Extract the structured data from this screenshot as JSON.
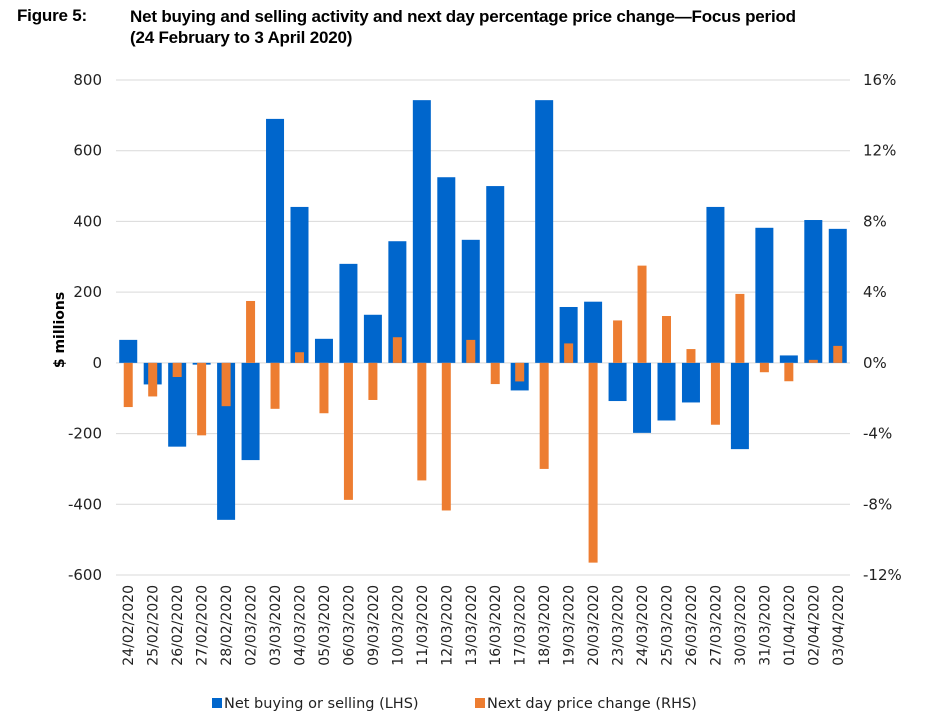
{
  "figure": {
    "label": "Figure 5:",
    "title_line1": "Net buying and selling activity and next day percentage price change—Focus period",
    "title_line2": "(24 February to 3 April 2020)"
  },
  "chart_data": {
    "type": "bar",
    "title": "Net buying and selling activity and next day percentage price change—Focus period (24 February to 3 April 2020)",
    "xlabel": "",
    "ylabel": "$ millions",
    "y2label": "",
    "ylim": [
      -600,
      800
    ],
    "y2lim": [
      -12,
      16
    ],
    "yticks": [
      800,
      600,
      400,
      200,
      0,
      -200,
      -400,
      -600
    ],
    "ytick_labels": [
      "800",
      "600",
      "400",
      "200",
      "0",
      "-200",
      "-400",
      "-600"
    ],
    "y2ticks": [
      16,
      12,
      8,
      4,
      0,
      -4,
      -8,
      -12
    ],
    "y2tick_labels": [
      "16%",
      "12%",
      "8%",
      "4%",
      "0%",
      "-4%",
      "-8%",
      "-12%"
    ],
    "grid": true,
    "legend_position": "bottom",
    "colors": {
      "net": "#0066cc",
      "price": "#ed7d31",
      "grid": "#d9d9d9"
    },
    "categories": [
      "24/02/2020",
      "25/02/2020",
      "26/02/2020",
      "27/02/2020",
      "28/02/2020",
      "02/03/2020",
      "03/03/2020",
      "04/03/2020",
      "05/03/2020",
      "06/03/2020",
      "09/03/2020",
      "10/03/2020",
      "11/03/2020",
      "12/03/2020",
      "13/03/2020",
      "16/03/2020",
      "17/03/2020",
      "18/03/2020",
      "19/03/2020",
      "20/03/2020",
      "23/03/2020",
      "24/03/2020",
      "25/03/2020",
      "26/03/2020",
      "27/03/2020",
      "30/03/2020",
      "31/03/2020",
      "01/04/2020",
      "02/04/2020",
      "03/04/2020"
    ],
    "series": [
      {
        "name": "Net buying or selling (LHS)",
        "axis": "left",
        "unit": "$ millions",
        "values": [
          65,
          -61,
          -237,
          -5,
          -444,
          -275,
          690,
          441,
          68,
          280,
          136,
          344,
          743,
          525,
          348,
          500,
          -78,
          743,
          158,
          173,
          -108,
          -198,
          -163,
          -112,
          441,
          -244,
          382,
          21,
          404,
          379
        ]
      },
      {
        "name": "Next day price change (RHS)",
        "axis": "right",
        "unit": "%",
        "values": [
          -2.5,
          -1.9,
          -0.8,
          -4.1,
          -2.45,
          3.5,
          -2.6,
          0.6,
          -2.85,
          -7.75,
          -2.1,
          1.45,
          -6.65,
          -8.35,
          1.3,
          -1.2,
          -1.05,
          -6.0,
          1.1,
          -11.3,
          2.4,
          5.5,
          2.65,
          0.78,
          -3.5,
          3.9,
          -0.53,
          -1.04,
          0.17,
          0.96
        ]
      }
    ]
  },
  "legend": {
    "items": [
      {
        "label": "Net buying or selling (LHS)",
        "color": "#0066cc"
      },
      {
        "label": "Next day price change (RHS)",
        "color": "#ed7d31"
      }
    ]
  }
}
